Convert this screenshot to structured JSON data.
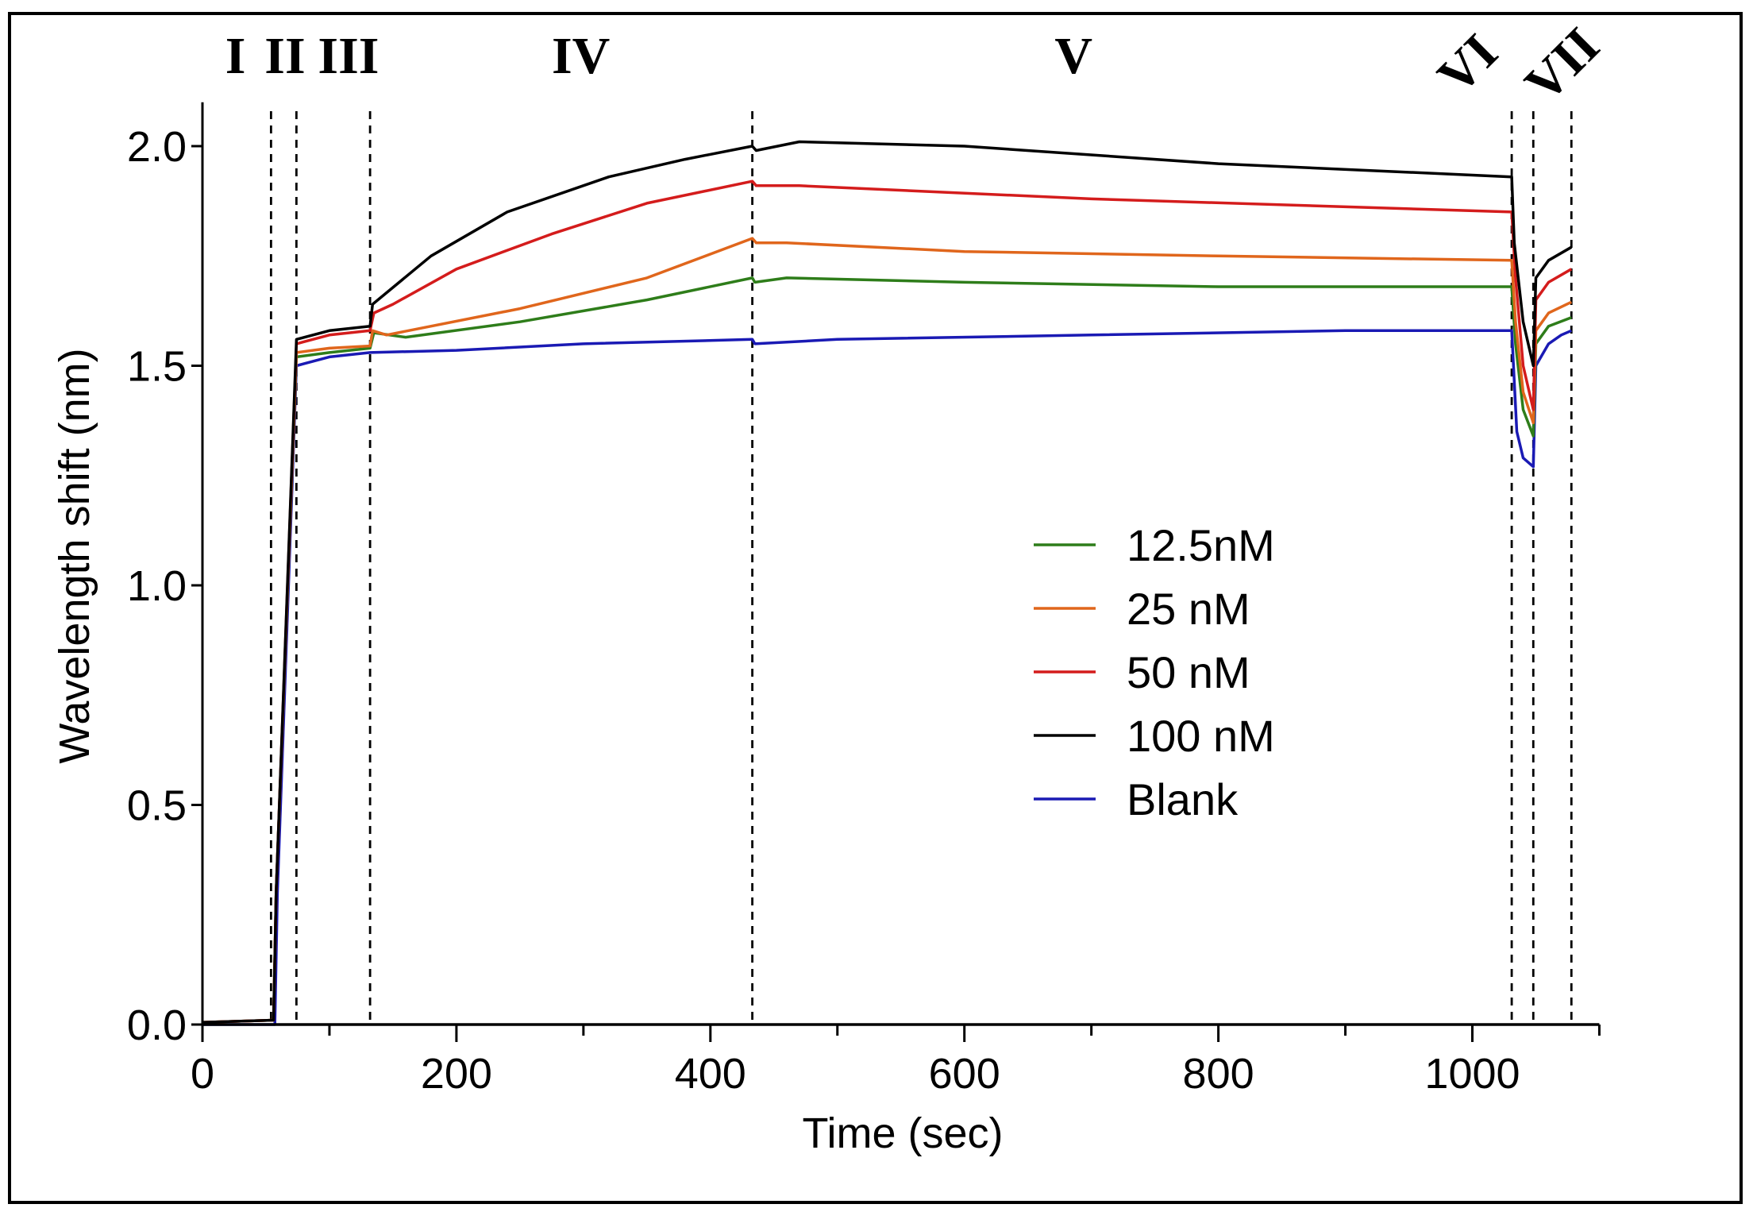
{
  "chart_data": {
    "type": "line",
    "title": "",
    "xlabel": "Time (sec)",
    "ylabel": "Wavelength shift (nm)",
    "xlim": [
      0,
      1100
    ],
    "ylim": [
      0,
      2.1
    ],
    "x_ticks": [
      0,
      200,
      400,
      600,
      800,
      1000
    ],
    "x_tick_labels": [
      "0",
      "200",
      "400",
      "600",
      "800",
      "1000"
    ],
    "x_minor_ticks": [
      100,
      300,
      500,
      700,
      900,
      1100
    ],
    "y_ticks": [
      0,
      0.5,
      1.0,
      1.5,
      2.0
    ],
    "y_tick_labels": [
      "0.0",
      "0.5",
      "1.0",
      "1.5",
      "2.0"
    ],
    "grid": false,
    "legend_position": "center-right",
    "phase_boundaries": [
      54,
      74,
      132,
      433,
      1031,
      1048,
      1078
    ],
    "phases": [
      {
        "label": "I",
        "t": 26
      },
      {
        "label": "II",
        "t": 65
      },
      {
        "label": "III",
        "t": 115
      },
      {
        "label": "IV",
        "t": 298
      },
      {
        "label": "V",
        "t": 686
      },
      {
        "label": "VI",
        "t": 1040,
        "rotated": true
      },
      {
        "label": "VII",
        "t": 1082,
        "rotated": true
      }
    ],
    "series": [
      {
        "name": "12.5nM",
        "color": "#2e7d1a",
        "points": [
          [
            0,
            0.005
          ],
          [
            56,
            0.01
          ],
          [
            58,
            0.3
          ],
          [
            74,
            1.52
          ],
          [
            100,
            1.53
          ],
          [
            132,
            1.54
          ],
          [
            135,
            1.575
          ],
          [
            160,
            1.565
          ],
          [
            250,
            1.6
          ],
          [
            350,
            1.65
          ],
          [
            433,
            1.7
          ],
          [
            435,
            1.69
          ],
          [
            460,
            1.7
          ],
          [
            600,
            1.69
          ],
          [
            800,
            1.68
          ],
          [
            1031,
            1.68
          ],
          [
            1034,
            1.55
          ],
          [
            1040,
            1.4
          ],
          [
            1048,
            1.34
          ],
          [
            1050,
            1.55
          ],
          [
            1060,
            1.59
          ],
          [
            1078,
            1.61
          ]
        ]
      },
      {
        "name": "25 nM",
        "color": "#e0661c",
        "points": [
          [
            0,
            0.005
          ],
          [
            56,
            0.01
          ],
          [
            58,
            0.3
          ],
          [
            74,
            1.53
          ],
          [
            100,
            1.54
          ],
          [
            132,
            1.545
          ],
          [
            134,
            1.58
          ],
          [
            145,
            1.57
          ],
          [
            250,
            1.63
          ],
          [
            350,
            1.7
          ],
          [
            433,
            1.79
          ],
          [
            436,
            1.78
          ],
          [
            460,
            1.78
          ],
          [
            600,
            1.76
          ],
          [
            800,
            1.75
          ],
          [
            1031,
            1.74
          ],
          [
            1034,
            1.6
          ],
          [
            1040,
            1.44
          ],
          [
            1048,
            1.37
          ],
          [
            1050,
            1.58
          ],
          [
            1060,
            1.62
          ],
          [
            1078,
            1.645
          ]
        ]
      },
      {
        "name": "50 nM",
        "color": "#d41c1c",
        "points": [
          [
            0,
            0.005
          ],
          [
            56,
            0.01
          ],
          [
            58,
            0.3
          ],
          [
            74,
            1.55
          ],
          [
            100,
            1.57
          ],
          [
            132,
            1.58
          ],
          [
            135,
            1.62
          ],
          [
            150,
            1.64
          ],
          [
            200,
            1.72
          ],
          [
            275,
            1.8
          ],
          [
            350,
            1.87
          ],
          [
            433,
            1.92
          ],
          [
            436,
            1.91
          ],
          [
            470,
            1.91
          ],
          [
            700,
            1.88
          ],
          [
            1031,
            1.85
          ],
          [
            1034,
            1.7
          ],
          [
            1040,
            1.5
          ],
          [
            1048,
            1.4
          ],
          [
            1050,
            1.65
          ],
          [
            1060,
            1.69
          ],
          [
            1078,
            1.72
          ]
        ]
      },
      {
        "name": "100 nM",
        "color": "#000000",
        "points": [
          [
            0,
            0.005
          ],
          [
            56,
            0.01
          ],
          [
            58,
            0.3
          ],
          [
            74,
            1.56
          ],
          [
            100,
            1.58
          ],
          [
            132,
            1.59
          ],
          [
            134,
            1.64
          ],
          [
            180,
            1.75
          ],
          [
            240,
            1.85
          ],
          [
            320,
            1.93
          ],
          [
            380,
            1.97
          ],
          [
            433,
            2.0
          ],
          [
            436,
            1.99
          ],
          [
            470,
            2.01
          ],
          [
            600,
            2.0
          ],
          [
            800,
            1.96
          ],
          [
            1031,
            1.93
          ],
          [
            1033,
            1.78
          ],
          [
            1040,
            1.6
          ],
          [
            1048,
            1.5
          ],
          [
            1050,
            1.7
          ],
          [
            1060,
            1.74
          ],
          [
            1078,
            1.77
          ]
        ]
      },
      {
        "name": "Blank",
        "color": "#1a1ab4",
        "points": [
          [
            0,
            0.0
          ],
          [
            57,
            0.0
          ],
          [
            59,
            0.3
          ],
          [
            74,
            1.5
          ],
          [
            100,
            1.52
          ],
          [
            132,
            1.53
          ],
          [
            200,
            1.535
          ],
          [
            300,
            1.55
          ],
          [
            433,
            1.56
          ],
          [
            435,
            1.55
          ],
          [
            500,
            1.56
          ],
          [
            700,
            1.57
          ],
          [
            900,
            1.58
          ],
          [
            1031,
            1.58
          ],
          [
            1035,
            1.35
          ],
          [
            1040,
            1.29
          ],
          [
            1048,
            1.27
          ],
          [
            1050,
            1.5
          ],
          [
            1060,
            1.55
          ],
          [
            1070,
            1.57
          ],
          [
            1078,
            1.58
          ]
        ]
      }
    ]
  }
}
